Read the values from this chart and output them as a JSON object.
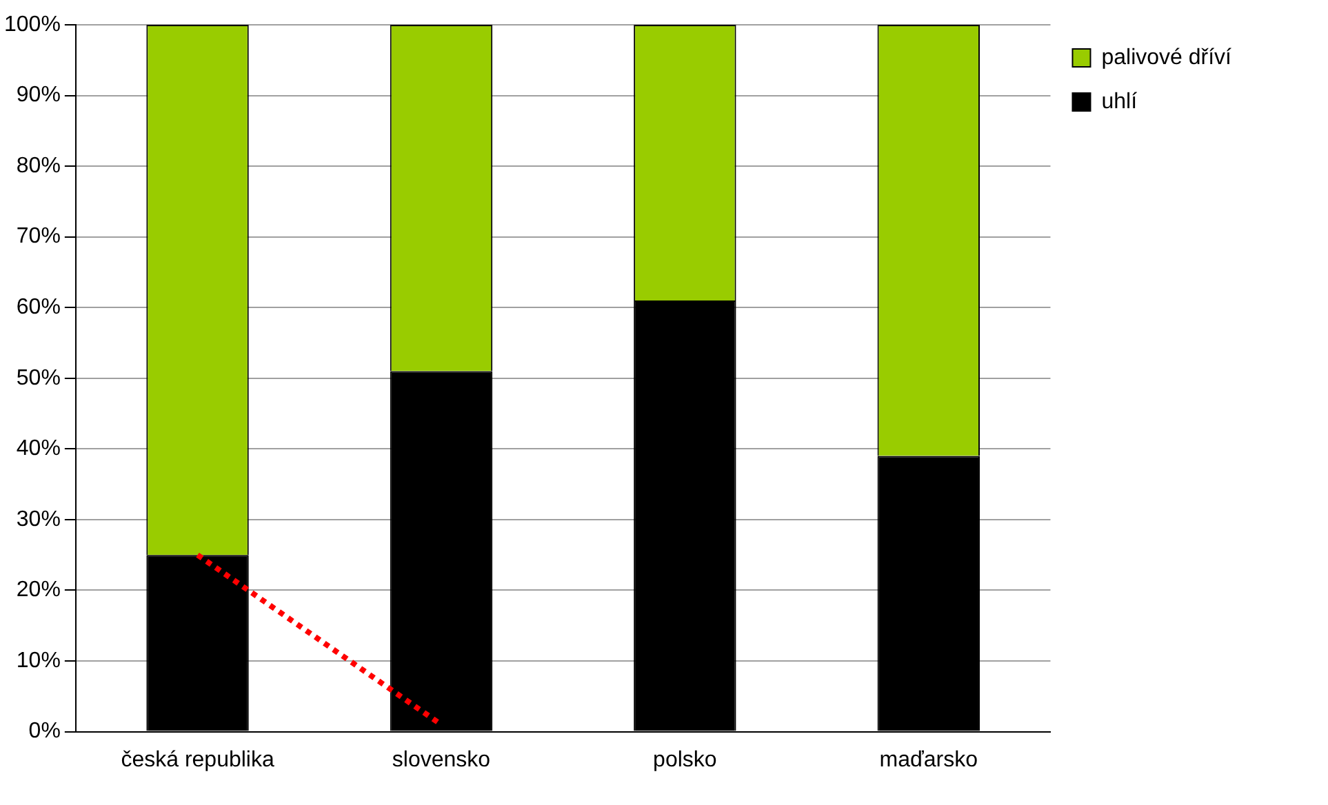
{
  "chart_data": {
    "type": "bar",
    "stacked": true,
    "categories": [
      "česká republika",
      "slovensko",
      "polsko",
      "maďarsko"
    ],
    "series": [
      {
        "name": "uhlí",
        "color": "#000000",
        "values": [
          25,
          51,
          61,
          39
        ]
      },
      {
        "name": "palivové dříví",
        "color": "#99cc00",
        "values": [
          75,
          49,
          39,
          61
        ]
      },
      {
        "type": "line",
        "color": "#ff0000",
        "line_style": "dotted",
        "marker": "none",
        "values": [
          25,
          1,
          null,
          null
        ]
      }
    ],
    "ylim": [
      0,
      100
    ],
    "yticks": [
      {
        "value": 0,
        "label": "0%"
      },
      {
        "value": 10,
        "label": "10%"
      },
      {
        "value": 20,
        "label": "20%"
      },
      {
        "value": 30,
        "label": "30%"
      },
      {
        "value": 40,
        "label": "40%"
      },
      {
        "value": 50,
        "label": "50%"
      },
      {
        "value": 60,
        "label": "60%"
      },
      {
        "value": 70,
        "label": "70%"
      },
      {
        "value": 80,
        "label": "80%"
      },
      {
        "value": 90,
        "label": "90%"
      },
      {
        "value": 100,
        "label": "100%"
      }
    ],
    "grid": "y",
    "legend": "top right"
  }
}
